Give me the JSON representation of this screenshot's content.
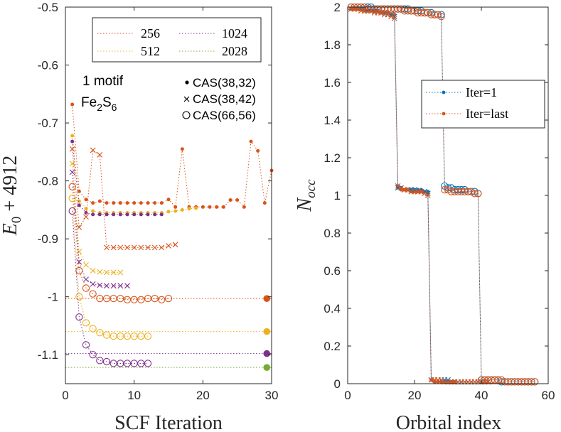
{
  "chart_data": [
    {
      "type": "line",
      "xlabel": "SCF Iteration",
      "ylabel": "E_0 + 4912",
      "xlim": [
        0,
        30
      ],
      "ylim": [
        -1.15,
        -0.5
      ],
      "xticks": [
        "0",
        "10",
        "20",
        "30"
      ],
      "yticks": [
        "-0.5",
        "-0.6",
        "-0.7",
        "-0.8",
        "-0.9",
        "-1",
        "-1.1"
      ],
      "legend_basis": [
        {
          "label": "256",
          "color": "#d95319"
        },
        {
          "label": "1024",
          "color": "#7e2f8e"
        },
        {
          "label": "512",
          "color": "#edb120"
        },
        {
          "label": "2028",
          "color": "#77ac30"
        }
      ],
      "annotation": {
        "line1": "1 motif",
        "line2_main": "Fe",
        "sub1": "2",
        "line2_mid": "S",
        "sub2": "6"
      },
      "legend_markers": [
        {
          "marker": "dot",
          "label": "CAS(38,32)"
        },
        {
          "marker": "x",
          "label": "CAS(38,42)"
        },
        {
          "marker": "circle",
          "label": "CAS(66,56)"
        }
      ],
      "series": [
        {
          "name": "256 CAS(38,32)",
          "color": "#d95319",
          "marker": "dot",
          "x": [
            1,
            2,
            3,
            4,
            5,
            6,
            7,
            8,
            9,
            10,
            11,
            12,
            13,
            14,
            15,
            16,
            17,
            18,
            19,
            20,
            21,
            22,
            23,
            24,
            25,
            26,
            27,
            28,
            29,
            30
          ],
          "y": [
            -0.668,
            -0.818,
            -0.832,
            -0.838,
            -0.835,
            -0.838,
            -0.838,
            -0.838,
            -0.838,
            -0.838,
            -0.838,
            -0.838,
            -0.838,
            -0.838,
            -0.832,
            -0.845,
            -0.745,
            -0.845,
            -0.845,
            -0.845,
            -0.845,
            -0.845,
            -0.845,
            -0.833,
            -0.833,
            -0.845,
            -0.732,
            -0.748,
            -0.838,
            -0.782
          ]
        },
        {
          "name": "512 CAS(38,32)",
          "color": "#edb120",
          "marker": "dot",
          "x": [
            1,
            2,
            3,
            4,
            5,
            6,
            7,
            8,
            9,
            10,
            11,
            12,
            13,
            14,
            15,
            16,
            17,
            18,
            19
          ],
          "y": [
            -0.722,
            -0.835,
            -0.848,
            -0.852,
            -0.855,
            -0.855,
            -0.855,
            -0.855,
            -0.855,
            -0.855,
            -0.855,
            -0.855,
            -0.855,
            -0.855,
            -0.853,
            -0.852,
            -0.85,
            -0.848,
            -0.847
          ]
        },
        {
          "name": "1024 CAS(38,32)",
          "color": "#7e2f8e",
          "marker": "dot",
          "x": [
            1,
            2,
            3,
            4,
            5,
            6,
            7,
            8,
            9,
            10,
            11,
            12,
            13,
            14
          ],
          "y": [
            -0.732,
            -0.842,
            -0.855,
            -0.858,
            -0.858,
            -0.858,
            -0.858,
            -0.858,
            -0.858,
            -0.858,
            -0.858,
            -0.858,
            -0.858,
            -0.858
          ]
        },
        {
          "name": "256 CAS(38,42)",
          "color": "#d95319",
          "marker": "x",
          "x": [
            1,
            2,
            3,
            4,
            5,
            6,
            7,
            8,
            9,
            10,
            11,
            12,
            13,
            14,
            15,
            16
          ],
          "y": [
            -0.745,
            -0.88,
            -0.862,
            -0.747,
            -0.755,
            -0.915,
            -0.915,
            -0.915,
            -0.915,
            -0.915,
            -0.915,
            -0.915,
            -0.915,
            -0.915,
            -0.912,
            -0.91
          ]
        },
        {
          "name": "512 CAS(38,42)",
          "color": "#edb120",
          "marker": "x",
          "x": [
            1,
            2,
            3,
            4,
            5,
            6,
            7,
            8
          ],
          "y": [
            -0.77,
            -0.922,
            -0.945,
            -0.955,
            -0.957,
            -0.958,
            -0.958,
            -0.958
          ]
        },
        {
          "name": "1024 CAS(38,42)",
          "color": "#7e2f8e",
          "marker": "x",
          "x": [
            1,
            2,
            3,
            4,
            5,
            6,
            7,
            8,
            9
          ],
          "y": [
            -0.785,
            -0.94,
            -0.97,
            -0.978,
            -0.98,
            -0.981,
            -0.981,
            -0.981,
            -0.981
          ]
        },
        {
          "name": "256 CAS(66,56)",
          "color": "#d95319",
          "marker": "circle",
          "x": [
            1,
            2,
            3,
            4,
            5,
            6,
            7,
            8,
            9,
            10,
            11,
            12,
            13,
            14,
            15
          ],
          "y": [
            -0.81,
            -0.955,
            -0.985,
            -0.995,
            -1.003,
            -1.003,
            -1.003,
            -1.003,
            -1.005,
            -1.005,
            -1.005,
            -1.003,
            -1.003,
            -1.005,
            -1.003
          ]
        },
        {
          "name": "512 CAS(66,56)",
          "color": "#edb120",
          "marker": "circle",
          "x": [
            1,
            2,
            3,
            4,
            5,
            6,
            7,
            8,
            9,
            10,
            11,
            12
          ],
          "y": [
            -0.83,
            -1.0,
            -1.045,
            -1.055,
            -1.062,
            -1.066,
            -1.068,
            -1.068,
            -1.068,
            -1.068,
            -1.068,
            -1.068
          ]
        },
        {
          "name": "1024 CAS(66,56)",
          "color": "#7e2f8e",
          "marker": "circle",
          "x": [
            1,
            2,
            3,
            4,
            5,
            6,
            7,
            8,
            9,
            10,
            11,
            12
          ],
          "y": [
            -0.852,
            -1.035,
            -1.083,
            -1.1,
            -1.11,
            -1.112,
            -1.115,
            -1.115,
            -1.115,
            -1.115,
            -1.115,
            -1.115
          ]
        }
      ],
      "reference_lines": [
        {
          "basis": "256",
          "color": "#d95319",
          "y": -1.003
        },
        {
          "basis": "512",
          "color": "#edb120",
          "y": -1.06
        },
        {
          "basis": "1024",
          "color": "#7e2f8e",
          "y": -1.098
        },
        {
          "basis": "2028",
          "color": "#77ac30",
          "y": -1.122
        }
      ]
    },
    {
      "type": "line",
      "xlabel": "Orbital index",
      "ylabel": "N_occ",
      "xlim": [
        0,
        60
      ],
      "ylim": [
        0,
        2
      ],
      "xticks": [
        "0",
        "20",
        "40",
        "60"
      ],
      "yticks": [
        "0",
        "0.2",
        "0.4",
        "0.6",
        "0.8",
        "1",
        "1.2",
        "1.4",
        "1.6",
        "1.8",
        "2"
      ],
      "legend": [
        {
          "label": "Iter=1",
          "color": "#0072bd",
          "marker": "dot"
        },
        {
          "label": "Iter=last",
          "color": "#d95319",
          "marker": "dot"
        }
      ],
      "series": [
        {
          "name": "Iter=1 CAS(38,32)",
          "color": "#0072bd",
          "marker": "dot",
          "x_start": 1,
          "y": [
            1.99,
            1.99,
            1.99,
            1.99,
            1.99,
            1.98,
            1.98,
            1.98,
            1.98,
            1.97,
            1.97,
            1.97,
            1.96,
            1.96,
            1.05,
            1.04,
            1.03,
            1.03,
            1.03,
            1.03,
            1.03,
            1.03,
            1.02,
            1.02,
            0.02,
            0.01,
            0.01,
            0.01,
            0.01,
            0.01,
            0.01,
            0.01
          ]
        },
        {
          "name": "Iter=last CAS(38,32)",
          "color": "#d95319",
          "marker": "dot",
          "x_start": 1,
          "y": [
            1.99,
            1.99,
            1.99,
            1.99,
            1.98,
            1.98,
            1.98,
            1.98,
            1.98,
            1.97,
            1.97,
            1.97,
            1.96,
            1.96,
            1.04,
            1.03,
            1.03,
            1.03,
            1.02,
            1.02,
            1.02,
            1.02,
            1.02,
            1.01,
            0.02,
            0.01,
            0.01,
            0.01,
            0.01,
            0.01,
            0.01,
            0.01
          ]
        },
        {
          "name": "Iter=1 CAS(38,42)",
          "color": "#0072bd",
          "marker": "x",
          "x_start": 1,
          "y": [
            1.99,
            1.99,
            1.99,
            1.99,
            1.99,
            1.98,
            1.98,
            1.98,
            1.98,
            1.97,
            1.97,
            1.96,
            1.96,
            1.95,
            1.04,
            1.04,
            1.03,
            1.03,
            1.03,
            1.03,
            1.02,
            1.02,
            1.02,
            1.01,
            0.02,
            0.02,
            0.02,
            0.02,
            0.02,
            0.02,
            0.01,
            0.01,
            0.01,
            0.01,
            0.01,
            0.01,
            0.01,
            0.01,
            0.01,
            0.01,
            0.01,
            0.01
          ]
        },
        {
          "name": "Iter=last CAS(38,42)",
          "color": "#d95319",
          "marker": "x",
          "x_start": 1,
          "y": [
            1.99,
            1.99,
            1.99,
            1.98,
            1.98,
            1.98,
            1.98,
            1.97,
            1.97,
            1.97,
            1.96,
            1.96,
            1.95,
            1.94,
            1.05,
            1.04,
            1.03,
            1.03,
            1.02,
            1.02,
            1.02,
            1.02,
            1.01,
            1.0,
            0.02,
            0.02,
            0.02,
            0.02,
            0.01,
            0.01,
            0.01,
            0.01,
            0.01,
            0.01,
            0.01,
            0.01,
            0.01,
            0.01,
            0.01,
            0.01,
            0.01,
            0.01
          ]
        },
        {
          "name": "Iter=1 CAS(66,56)",
          "color": "#0072bd",
          "marker": "circle",
          "x_start": 1,
          "y": [
            2.0,
            2.0,
            2.0,
            2.0,
            2.0,
            2.0,
            2.0,
            1.99,
            1.99,
            1.99,
            1.99,
            1.99,
            1.99,
            1.99,
            1.99,
            1.99,
            1.99,
            1.99,
            1.98,
            1.98,
            1.98,
            1.98,
            1.97,
            1.97,
            1.97,
            1.96,
            1.96,
            1.96,
            1.05,
            1.04,
            1.04,
            1.03,
            1.03,
            1.03,
            1.03,
            1.02,
            1.02,
            1.02,
            1.01,
            0.02,
            0.02,
            0.02,
            0.02,
            0.02,
            0.02,
            0.01,
            0.01,
            0.01,
            0.01,
            0.01,
            0.01,
            0.01,
            0.01,
            0.01,
            0.01,
            0.01
          ]
        },
        {
          "name": "Iter=last CAS(66,56)",
          "color": "#d95319",
          "marker": "circle",
          "x_start": 1,
          "y": [
            2.0,
            2.0,
            2.0,
            2.0,
            2.0,
            1.99,
            1.99,
            1.99,
            1.99,
            1.99,
            1.99,
            1.99,
            1.99,
            1.99,
            1.99,
            1.99,
            1.98,
            1.98,
            1.98,
            1.98,
            1.97,
            1.97,
            1.97,
            1.97,
            1.96,
            1.96,
            1.96,
            1.95,
            1.03,
            1.03,
            1.02,
            1.02,
            1.02,
            1.02,
            1.02,
            1.02,
            1.02,
            1.01,
            1.01,
            0.02,
            0.02,
            0.02,
            0.02,
            0.02,
            0.02,
            0.02,
            0.01,
            0.01,
            0.01,
            0.01,
            0.01,
            0.01,
            0.01,
            0.01,
            0.01,
            0.01
          ]
        }
      ]
    }
  ]
}
